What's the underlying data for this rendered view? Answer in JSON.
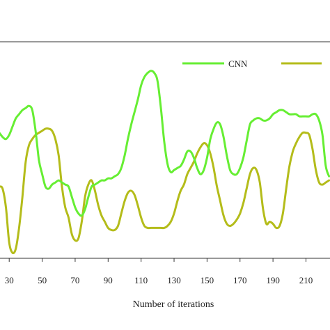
{
  "chart_data": {
    "type": "line",
    "title": "",
    "xlabel": "Number of iterations",
    "ylabel": "",
    "xlim": [
      24,
      225
    ],
    "ylim": [
      0,
      1
    ],
    "grid": false,
    "legend_position": "top-right",
    "x_ticks": [
      30,
      50,
      70,
      90,
      110,
      130,
      150,
      170,
      190,
      210
    ],
    "x_tick_labels": [
      "30",
      "50",
      "70",
      "90",
      "110",
      "130",
      "150",
      "170",
      "190",
      "210"
    ],
    "series": [
      {
        "name": "CNN",
        "color": "#66ee33",
        "x": [
          24,
          26,
          28,
          30,
          32,
          34,
          36,
          38,
          40,
          42,
          44,
          46,
          48,
          50,
          52,
          54,
          56,
          58,
          60,
          62,
          64,
          66,
          68,
          70,
          72,
          74,
          76,
          78,
          80,
          82,
          84,
          86,
          88,
          90,
          92,
          94,
          96,
          98,
          100,
          102,
          104,
          106,
          108,
          110,
          112,
          114,
          116,
          118,
          120,
          122,
          124,
          126,
          128,
          130,
          132,
          134,
          136,
          138,
          140,
          142,
          144,
          146,
          148,
          150,
          152,
          154,
          156,
          158,
          160,
          162,
          164,
          166,
          168,
          170,
          172,
          174,
          176,
          178,
          180,
          182,
          184,
          186,
          188,
          190,
          192,
          194,
          196,
          198,
          200,
          202,
          204,
          206,
          208,
          210,
          212,
          214,
          216,
          218,
          220,
          222,
          224
        ],
        "y": [
          0.61,
          0.59,
          0.58,
          0.6,
          0.64,
          0.68,
          0.7,
          0.72,
          0.73,
          0.74,
          0.72,
          0.62,
          0.48,
          0.41,
          0.35,
          0.34,
          0.36,
          0.37,
          0.38,
          0.37,
          0.36,
          0.35,
          0.3,
          0.25,
          0.22,
          0.21,
          0.24,
          0.3,
          0.35,
          0.36,
          0.37,
          0.38,
          0.38,
          0.39,
          0.39,
          0.4,
          0.41,
          0.44,
          0.5,
          0.58,
          0.65,
          0.71,
          0.77,
          0.84,
          0.88,
          0.9,
          0.91,
          0.9,
          0.86,
          0.73,
          0.57,
          0.46,
          0.42,
          0.43,
          0.44,
          0.45,
          0.48,
          0.52,
          0.52,
          0.49,
          0.44,
          0.41,
          0.43,
          0.49,
          0.58,
          0.63,
          0.66,
          0.65,
          0.59,
          0.5,
          0.43,
          0.41,
          0.41,
          0.44,
          0.49,
          0.57,
          0.65,
          0.67,
          0.68,
          0.68,
          0.67,
          0.67,
          0.68,
          0.7,
          0.71,
          0.72,
          0.72,
          0.71,
          0.7,
          0.7,
          0.7,
          0.69,
          0.69,
          0.69,
          0.69,
          0.7,
          0.7,
          0.67,
          0.6,
          0.45,
          0.4
        ]
      },
      {
        "name": "",
        "color": "#b4bc1a",
        "x": [
          24,
          26,
          28,
          30,
          32,
          34,
          36,
          38,
          40,
          42,
          44,
          46,
          48,
          50,
          52,
          54,
          56,
          58,
          60,
          62,
          64,
          66,
          68,
          70,
          72,
          74,
          76,
          78,
          80,
          82,
          84,
          86,
          88,
          90,
          92,
          94,
          96,
          98,
          100,
          102,
          104,
          106,
          108,
          110,
          112,
          114,
          116,
          118,
          120,
          122,
          124,
          126,
          128,
          130,
          132,
          134,
          136,
          138,
          140,
          142,
          144,
          146,
          148,
          150,
          152,
          154,
          156,
          158,
          160,
          162,
          164,
          166,
          168,
          170,
          172,
          174,
          176,
          178,
          180,
          182,
          184,
          186,
          188,
          190,
          192,
          194,
          196,
          198,
          200,
          202,
          204,
          206,
          208,
          210,
          212,
          214,
          216,
          218,
          220,
          222,
          224
        ],
        "y": [
          0.35,
          0.34,
          0.25,
          0.08,
          0.03,
          0.05,
          0.15,
          0.3,
          0.47,
          0.55,
          0.58,
          0.6,
          0.61,
          0.62,
          0.63,
          0.63,
          0.62,
          0.58,
          0.5,
          0.35,
          0.25,
          0.2,
          0.12,
          0.09,
          0.1,
          0.18,
          0.3,
          0.36,
          0.38,
          0.33,
          0.26,
          0.21,
          0.18,
          0.15,
          0.14,
          0.14,
          0.16,
          0.22,
          0.28,
          0.32,
          0.33,
          0.31,
          0.26,
          0.2,
          0.16,
          0.15,
          0.15,
          0.15,
          0.15,
          0.15,
          0.15,
          0.16,
          0.18,
          0.22,
          0.28,
          0.33,
          0.36,
          0.41,
          0.44,
          0.47,
          0.51,
          0.54,
          0.56,
          0.55,
          0.51,
          0.44,
          0.35,
          0.28,
          0.21,
          0.17,
          0.16,
          0.17,
          0.19,
          0.22,
          0.27,
          0.34,
          0.41,
          0.44,
          0.43,
          0.37,
          0.24,
          0.17,
          0.18,
          0.17,
          0.15,
          0.16,
          0.22,
          0.34,
          0.45,
          0.52,
          0.56,
          0.59,
          0.61,
          0.61,
          0.6,
          0.53,
          0.43,
          0.37,
          0.36,
          0.37,
          0.38
        ]
      }
    ],
    "legend": [
      {
        "label": "CNN",
        "color": "#66ee33"
      },
      {
        "label": "",
        "color": "#b4bc1a"
      }
    ]
  }
}
